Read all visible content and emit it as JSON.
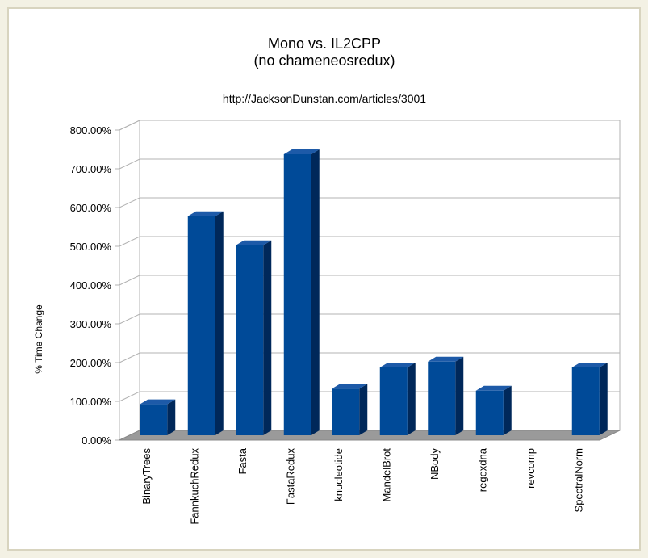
{
  "chart_data": {
    "type": "bar3d",
    "title": "Mono vs. IL2CPP",
    "subtitle": "(no chameneosredux)",
    "annotation": "http://JacksonDunstan.com/articles/3001",
    "y_label": "% Time Change",
    "categories": [
      "BinaryTrees",
      "FannkuchRedux",
      "Fasta",
      "FastaRedux",
      "knucleotide",
      "MandelBrot",
      "NBody",
      "regexdna",
      "revcomp",
      "SpectralNorm"
    ],
    "values": [
      80,
      565,
      490,
      725,
      120,
      175,
      190,
      115,
      null,
      175
    ],
    "color": "#004a98",
    "ylim": [
      0,
      800
    ],
    "yticks": [
      {
        "value": 0,
        "label": "0.00%"
      },
      {
        "value": 100,
        "label": "100.00%"
      },
      {
        "value": 200,
        "label": "200.00%"
      },
      {
        "value": 300,
        "label": "300.00%"
      },
      {
        "value": 400,
        "label": "400.00%"
      },
      {
        "value": 500,
        "label": "500.00%"
      },
      {
        "value": 600,
        "label": "600.00%"
      },
      {
        "value": 700,
        "label": "700.00%"
      },
      {
        "value": 800,
        "label": "800.00%"
      }
    ],
    "grid": true
  }
}
